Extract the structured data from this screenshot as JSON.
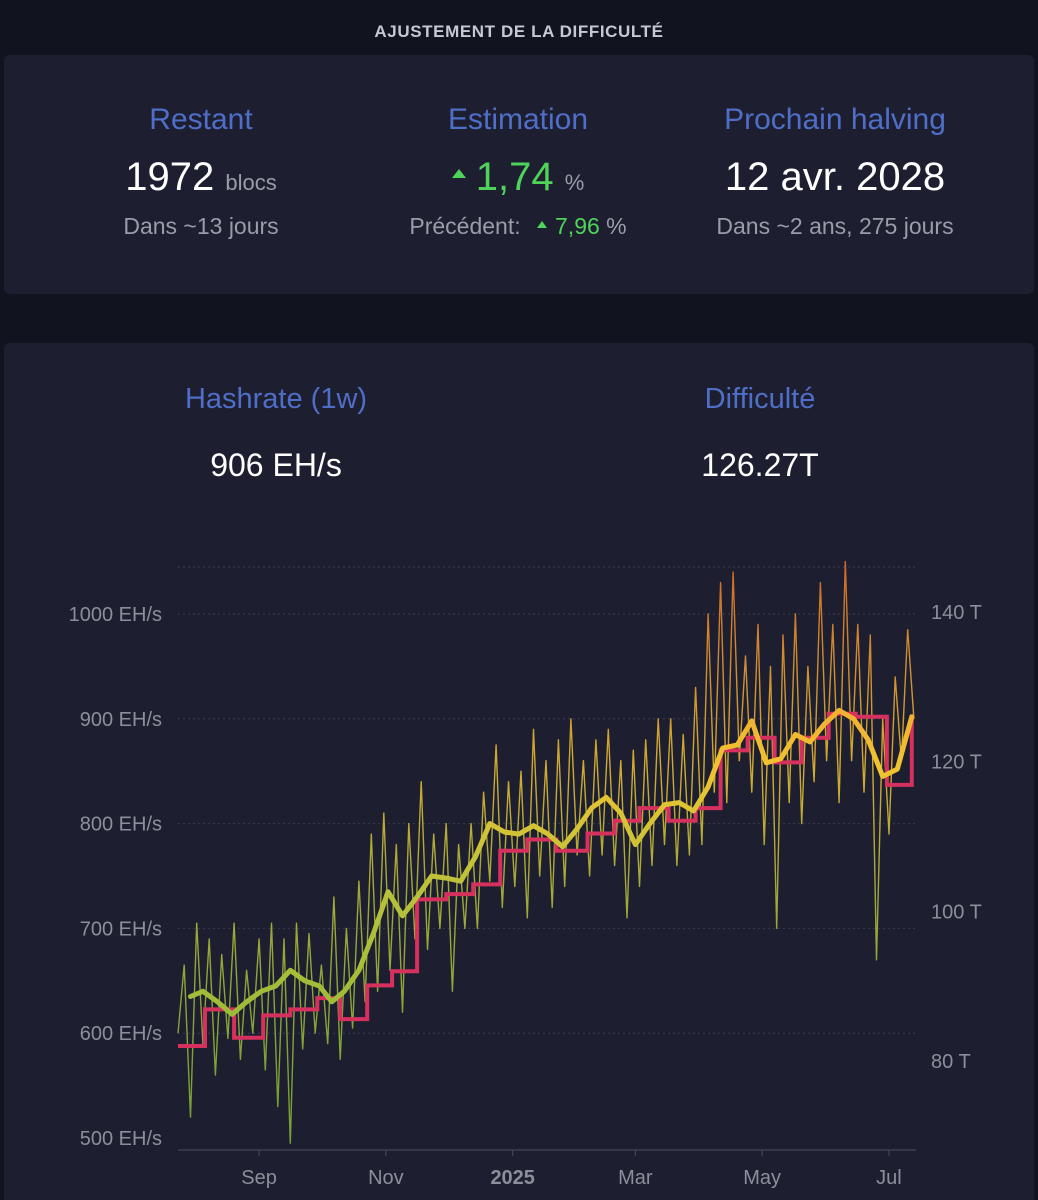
{
  "header": {
    "title": "AJUSTEMENT DE LA DIFFICULTÉ"
  },
  "stats": {
    "remaining": {
      "label": "Restant",
      "value": "1972",
      "unit": "blocs",
      "sub": "Dans ~13 jours"
    },
    "estimate": {
      "label": "Estimation",
      "value": "1,74",
      "unit": "%",
      "previous_label": "Précédent:",
      "previous_value": "7,96",
      "previous_unit": "%"
    },
    "halving": {
      "label": "Prochain halving",
      "value": "12 avr. 2028",
      "sub": "Dans ~2 ans, 275 jours"
    }
  },
  "metrics": {
    "hashrate_label": "Hashrate (1w)",
    "hashrate_value": "906 EH/s",
    "difficulty_label": "Difficulté",
    "difficulty_value": "126.27T"
  },
  "colors": {
    "accent_blue": "#4f6ec7",
    "positive_green": "#4fd45a",
    "difficulty_line": "#d6305e",
    "hashrate_low": "#8bb837",
    "hashrate_high": "#f0b32d",
    "hashrate_peak": "#f08a24"
  },
  "chart_data": {
    "type": "line",
    "x_axis": {
      "start": "2024-07-24",
      "end": "2025-07-14",
      "ticks": [
        {
          "date": "2024-09-01",
          "label": "Sep",
          "bold": false
        },
        {
          "date": "2024-11-01",
          "label": "Nov",
          "bold": false
        },
        {
          "date": "2025-01-01",
          "label": "2025",
          "bold": true
        },
        {
          "date": "2025-03-01",
          "label": "Mar",
          "bold": false
        },
        {
          "date": "2025-05-01",
          "label": "May",
          "bold": false
        },
        {
          "date": "2025-07-01",
          "label": "Jul",
          "bold": false
        }
      ]
    },
    "y_left": {
      "unit": "EH/s",
      "range": [
        500,
        1050
      ],
      "ticks": [
        {
          "value": 500,
          "label": "500 EH/s"
        },
        {
          "value": 600,
          "label": "600 EH/s"
        },
        {
          "value": 700,
          "label": "700 EH/s"
        },
        {
          "value": 800,
          "label": "800 EH/s"
        },
        {
          "value": 900,
          "label": "900 EH/s"
        },
        {
          "value": 1000,
          "label": "1000 EH/s"
        }
      ]
    },
    "y_right": {
      "unit": "T",
      "range": [
        70,
        143
      ],
      "ticks": [
        {
          "value": 80,
          "label": "80 T"
        },
        {
          "value": 100,
          "label": "100 T"
        },
        {
          "value": 120,
          "label": "120 T"
        },
        {
          "value": 140,
          "label": "140 T"
        }
      ]
    },
    "grid": true,
    "series": [
      {
        "kind": "difficulty-step",
        "axis": "right",
        "points": [
          [
            "2024-07-24",
            82.0
          ],
          [
            "2024-08-06",
            86.9
          ],
          [
            "2024-08-20",
            83.1
          ],
          [
            "2024-09-03",
            86.1
          ],
          [
            "2024-09-16",
            86.9
          ],
          [
            "2024-09-29",
            88.4
          ],
          [
            "2024-10-10",
            85.6
          ],
          [
            "2024-10-23",
            90.1
          ],
          [
            "2024-11-04",
            92.0
          ],
          [
            "2024-11-16",
            101.6
          ],
          [
            "2024-11-30",
            102.3
          ],
          [
            "2024-12-13",
            103.6
          ],
          [
            "2024-12-26",
            108.1
          ],
          [
            "2025-01-08",
            109.6
          ],
          [
            "2025-01-22",
            108.1
          ],
          [
            "2025-02-06",
            110.4
          ],
          [
            "2025-02-19",
            112.1
          ],
          [
            "2025-03-03",
            113.8
          ],
          [
            "2025-03-17",
            112.1
          ],
          [
            "2025-03-30",
            113.8
          ],
          [
            "2025-04-11",
            121.5
          ],
          [
            "2025-04-24",
            123.2
          ],
          [
            "2025-05-07",
            119.9
          ],
          [
            "2025-05-20",
            123.2
          ],
          [
            "2025-06-02",
            126.4
          ],
          [
            "2025-06-15",
            126.0
          ],
          [
            "2025-06-30",
            116.9
          ],
          [
            "2025-07-12",
            126.3
          ]
        ]
      },
      {
        "kind": "hashrate-1w",
        "axis": "left",
        "points": [
          [
            "2024-07-30",
            635
          ],
          [
            "2024-08-05",
            640
          ],
          [
            "2024-08-12",
            630
          ],
          [
            "2024-08-19",
            618
          ],
          [
            "2024-08-26",
            630
          ],
          [
            "2024-09-02",
            640
          ],
          [
            "2024-09-09",
            645
          ],
          [
            "2024-09-16",
            660
          ],
          [
            "2024-09-23",
            650
          ],
          [
            "2024-09-30",
            645
          ],
          [
            "2024-10-06",
            630
          ],
          [
            "2024-10-12",
            640
          ],
          [
            "2024-10-19",
            660
          ],
          [
            "2024-10-26",
            695
          ],
          [
            "2024-11-02",
            735
          ],
          [
            "2024-11-09",
            712
          ],
          [
            "2024-11-16",
            730
          ],
          [
            "2024-11-23",
            750
          ],
          [
            "2024-11-30",
            748
          ],
          [
            "2024-12-07",
            745
          ],
          [
            "2024-12-14",
            768
          ],
          [
            "2024-12-21",
            800
          ],
          [
            "2024-12-28",
            792
          ],
          [
            "2025-01-04",
            790
          ],
          [
            "2025-01-11",
            798
          ],
          [
            "2025-01-18",
            790
          ],
          [
            "2025-01-25",
            778
          ],
          [
            "2025-02-01",
            795
          ],
          [
            "2025-02-08",
            815
          ],
          [
            "2025-02-15",
            825
          ],
          [
            "2025-02-22",
            810
          ],
          [
            "2025-03-01",
            780
          ],
          [
            "2025-03-08",
            800
          ],
          [
            "2025-03-15",
            818
          ],
          [
            "2025-03-22",
            820
          ],
          [
            "2025-03-29",
            812
          ],
          [
            "2025-04-05",
            835
          ],
          [
            "2025-04-12",
            872
          ],
          [
            "2025-04-19",
            875
          ],
          [
            "2025-04-26",
            898
          ],
          [
            "2025-05-03",
            858
          ],
          [
            "2025-05-10",
            862
          ],
          [
            "2025-05-17",
            885
          ],
          [
            "2025-05-24",
            878
          ],
          [
            "2025-05-31",
            895
          ],
          [
            "2025-06-07",
            908
          ],
          [
            "2025-06-14",
            900
          ],
          [
            "2025-06-21",
            880
          ],
          [
            "2025-06-28",
            845
          ],
          [
            "2025-07-05",
            852
          ],
          [
            "2025-07-12",
            902
          ]
        ]
      },
      {
        "kind": "hashrate-daily",
        "axis": "left",
        "points": [
          [
            "2024-07-24",
            600
          ],
          [
            "2024-07-27",
            665
          ],
          [
            "2024-07-30",
            520
          ],
          [
            "2024-08-02",
            705
          ],
          [
            "2024-08-05",
            590
          ],
          [
            "2024-08-08",
            690
          ],
          [
            "2024-08-11",
            560
          ],
          [
            "2024-08-14",
            675
          ],
          [
            "2024-08-17",
            595
          ],
          [
            "2024-08-20",
            705
          ],
          [
            "2024-08-23",
            575
          ],
          [
            "2024-08-26",
            660
          ],
          [
            "2024-08-29",
            600
          ],
          [
            "2024-09-01",
            690
          ],
          [
            "2024-09-04",
            565
          ],
          [
            "2024-09-07",
            705
          ],
          [
            "2024-09-10",
            530
          ],
          [
            "2024-09-13",
            690
          ],
          [
            "2024-09-16",
            495
          ],
          [
            "2024-09-19",
            705
          ],
          [
            "2024-09-22",
            585
          ],
          [
            "2024-09-25",
            695
          ],
          [
            "2024-09-28",
            600
          ],
          [
            "2024-10-01",
            665
          ],
          [
            "2024-10-04",
            590
          ],
          [
            "2024-10-07",
            730
          ],
          [
            "2024-10-10",
            575
          ],
          [
            "2024-10-13",
            700
          ],
          [
            "2024-10-16",
            605
          ],
          [
            "2024-10-19",
            745
          ],
          [
            "2024-10-22",
            630
          ],
          [
            "2024-10-25",
            790
          ],
          [
            "2024-10-28",
            640
          ],
          [
            "2024-10-31",
            810
          ],
          [
            "2024-11-03",
            660
          ],
          [
            "2024-11-06",
            780
          ],
          [
            "2024-11-09",
            620
          ],
          [
            "2024-11-12",
            800
          ],
          [
            "2024-11-15",
            690
          ],
          [
            "2024-11-18",
            840
          ],
          [
            "2024-11-21",
            680
          ],
          [
            "2024-11-24",
            790
          ],
          [
            "2024-11-27",
            700
          ],
          [
            "2024-11-30",
            800
          ],
          [
            "2024-12-03",
            640
          ],
          [
            "2024-12-06",
            780
          ],
          [
            "2024-12-09",
            700
          ],
          [
            "2024-12-12",
            800
          ],
          [
            "2024-12-15",
            700
          ],
          [
            "2024-12-18",
            830
          ],
          [
            "2024-12-21",
            745
          ],
          [
            "2024-12-24",
            875
          ],
          [
            "2024-12-27",
            720
          ],
          [
            "2024-12-30",
            840
          ],
          [
            "2025-01-02",
            740
          ],
          [
            "2025-01-05",
            850
          ],
          [
            "2025-01-08",
            710
          ],
          [
            "2025-01-11",
            890
          ],
          [
            "2025-01-14",
            750
          ],
          [
            "2025-01-17",
            860
          ],
          [
            "2025-01-20",
            720
          ],
          [
            "2025-01-23",
            880
          ],
          [
            "2025-01-26",
            740
          ],
          [
            "2025-01-29",
            900
          ],
          [
            "2025-02-01",
            770
          ],
          [
            "2025-02-04",
            860
          ],
          [
            "2025-02-07",
            750
          ],
          [
            "2025-02-10",
            880
          ],
          [
            "2025-02-13",
            770
          ],
          [
            "2025-02-16",
            890
          ],
          [
            "2025-02-19",
            760
          ],
          [
            "2025-02-22",
            860
          ],
          [
            "2025-02-25",
            710
          ],
          [
            "2025-02-28",
            870
          ],
          [
            "2025-03-03",
            740
          ],
          [
            "2025-03-06",
            880
          ],
          [
            "2025-03-09",
            760
          ],
          [
            "2025-03-12",
            900
          ],
          [
            "2025-03-15",
            780
          ],
          [
            "2025-03-18",
            900
          ],
          [
            "2025-03-21",
            760
          ],
          [
            "2025-03-24",
            885
          ],
          [
            "2025-03-27",
            770
          ],
          [
            "2025-03-30",
            930
          ],
          [
            "2025-04-02",
            780
          ],
          [
            "2025-04-05",
            1000
          ],
          [
            "2025-04-08",
            830
          ],
          [
            "2025-04-11",
            1030
          ],
          [
            "2025-04-14",
            820
          ],
          [
            "2025-04-17",
            1040
          ],
          [
            "2025-04-20",
            860
          ],
          [
            "2025-04-23",
            960
          ],
          [
            "2025-04-26",
            830
          ],
          [
            "2025-04-29",
            990
          ],
          [
            "2025-05-02",
            780
          ],
          [
            "2025-05-05",
            950
          ],
          [
            "2025-05-08",
            700
          ],
          [
            "2025-05-11",
            980
          ],
          [
            "2025-05-14",
            820
          ],
          [
            "2025-05-17",
            1000
          ],
          [
            "2025-05-20",
            800
          ],
          [
            "2025-05-23",
            950
          ],
          [
            "2025-05-26",
            840
          ],
          [
            "2025-05-29",
            1030
          ],
          [
            "2025-06-01",
            860
          ],
          [
            "2025-06-04",
            990
          ],
          [
            "2025-06-07",
            820
          ],
          [
            "2025-06-10",
            1050
          ],
          [
            "2025-06-13",
            860
          ],
          [
            "2025-06-16",
            990
          ],
          [
            "2025-06-19",
            830
          ],
          [
            "2025-06-22",
            980
          ],
          [
            "2025-06-25",
            670
          ],
          [
            "2025-06-28",
            900
          ],
          [
            "2025-07-01",
            790
          ],
          [
            "2025-07-04",
            940
          ],
          [
            "2025-07-07",
            860
          ],
          [
            "2025-07-10",
            985
          ],
          [
            "2025-07-13",
            900
          ]
        ]
      }
    ]
  }
}
